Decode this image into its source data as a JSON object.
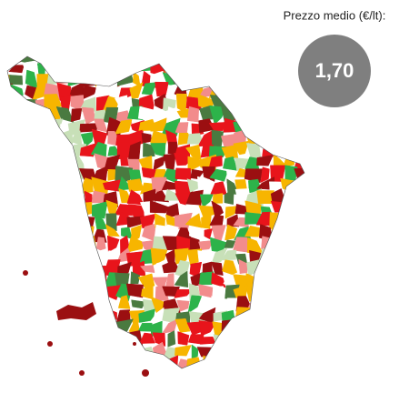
{
  "legend": {
    "label": "Prezzo medio (€/lt):",
    "value": "1,70"
  }
}
